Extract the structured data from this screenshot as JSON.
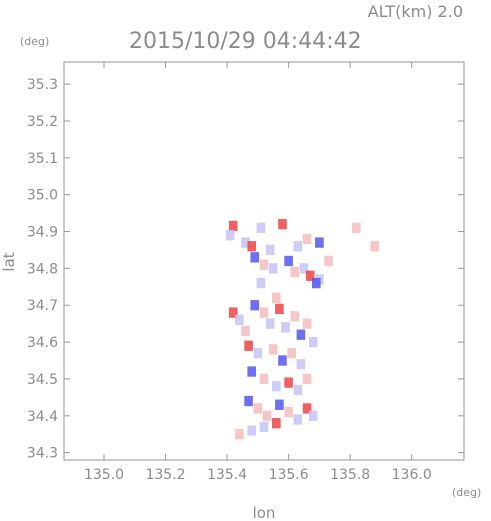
{
  "header": {
    "altitude_label": "ALT(km) 2.0",
    "timestamp": "2015/10/29 04:44:42"
  },
  "chart_data": {
    "type": "heatmap",
    "xlabel": "lon",
    "ylabel": "lat",
    "x_unit": "(deg)",
    "y_unit": "(deg)",
    "xlim": [
      134.87,
      136.17
    ],
    "ylim": [
      34.28,
      35.36
    ],
    "x_ticks": [
      135.0,
      135.2,
      135.4,
      135.6,
      135.8,
      136.0
    ],
    "x_tick_labels": [
      "135.0",
      "135.2",
      "135.4",
      "135.6",
      "135.8",
      "136.0"
    ],
    "y_ticks": [
      34.3,
      34.4,
      34.5,
      34.6,
      34.7,
      34.8,
      34.9,
      35.0,
      35.1,
      35.2,
      35.3
    ],
    "y_tick_labels": [
      "34.3",
      "34.4",
      "34.5",
      "34.6",
      "34.7",
      "34.8",
      "34.9",
      "35.0",
      "35.1",
      "35.2",
      "35.3"
    ],
    "colors": {
      "positive": "#ee4444",
      "negative": "#5555ee",
      "positive_light": "#f6bcbc",
      "negative_light": "#c4c4f6"
    },
    "cells": [
      {
        "lon": 135.42,
        "lat": 34.915,
        "v": 1
      },
      {
        "lon": 135.41,
        "lat": 34.89,
        "v": -1
      },
      {
        "lon": 135.46,
        "lat": 34.87,
        "v": -1
      },
      {
        "lon": 135.48,
        "lat": 34.86,
        "v": 1
      },
      {
        "lon": 135.51,
        "lat": 34.91,
        "v": -1
      },
      {
        "lon": 135.54,
        "lat": 34.85,
        "v": -1
      },
      {
        "lon": 135.58,
        "lat": 34.92,
        "v": 1
      },
      {
        "lon": 135.63,
        "lat": 34.86,
        "v": -1
      },
      {
        "lon": 135.66,
        "lat": 34.88,
        "v": 1
      },
      {
        "lon": 135.7,
        "lat": 34.87,
        "v": -1
      },
      {
        "lon": 135.82,
        "lat": 34.91,
        "v": 1
      },
      {
        "lon": 135.88,
        "lat": 34.86,
        "v": 1
      },
      {
        "lon": 135.49,
        "lat": 34.83,
        "v": -1
      },
      {
        "lon": 135.52,
        "lat": 34.81,
        "v": 1
      },
      {
        "lon": 135.55,
        "lat": 34.8,
        "v": -1
      },
      {
        "lon": 135.6,
        "lat": 34.82,
        "v": -1
      },
      {
        "lon": 135.62,
        "lat": 34.79,
        "v": 1
      },
      {
        "lon": 135.65,
        "lat": 34.8,
        "v": -1
      },
      {
        "lon": 135.67,
        "lat": 34.78,
        "v": 1
      },
      {
        "lon": 135.7,
        "lat": 34.77,
        "v": -1
      },
      {
        "lon": 135.73,
        "lat": 34.82,
        "v": 1
      },
      {
        "lon": 135.69,
        "lat": 34.76,
        "v": -1
      },
      {
        "lon": 135.51,
        "lat": 34.76,
        "v": -1
      },
      {
        "lon": 135.56,
        "lat": 34.72,
        "v": 1
      },
      {
        "lon": 135.42,
        "lat": 34.68,
        "v": 1
      },
      {
        "lon": 135.44,
        "lat": 34.66,
        "v": -1
      },
      {
        "lon": 135.46,
        "lat": 34.63,
        "v": 1
      },
      {
        "lon": 135.49,
        "lat": 34.7,
        "v": -1
      },
      {
        "lon": 135.52,
        "lat": 34.68,
        "v": 1
      },
      {
        "lon": 135.54,
        "lat": 34.65,
        "v": -1
      },
      {
        "lon": 135.57,
        "lat": 34.69,
        "v": 1
      },
      {
        "lon": 135.59,
        "lat": 34.64,
        "v": -1
      },
      {
        "lon": 135.62,
        "lat": 34.67,
        "v": 1
      },
      {
        "lon": 135.64,
        "lat": 34.62,
        "v": -1
      },
      {
        "lon": 135.66,
        "lat": 34.65,
        "v": 1
      },
      {
        "lon": 135.68,
        "lat": 34.6,
        "v": -1
      },
      {
        "lon": 135.47,
        "lat": 34.59,
        "v": 1
      },
      {
        "lon": 135.5,
        "lat": 34.57,
        "v": -1
      },
      {
        "lon": 135.55,
        "lat": 34.58,
        "v": 1
      },
      {
        "lon": 135.58,
        "lat": 34.55,
        "v": -1
      },
      {
        "lon": 135.61,
        "lat": 34.57,
        "v": 1
      },
      {
        "lon": 135.64,
        "lat": 34.54,
        "v": -1
      },
      {
        "lon": 135.48,
        "lat": 34.52,
        "v": -1
      },
      {
        "lon": 135.52,
        "lat": 34.5,
        "v": 1
      },
      {
        "lon": 135.56,
        "lat": 34.48,
        "v": -1
      },
      {
        "lon": 135.6,
        "lat": 34.49,
        "v": 1
      },
      {
        "lon": 135.63,
        "lat": 34.47,
        "v": -1
      },
      {
        "lon": 135.66,
        "lat": 34.5,
        "v": 1
      },
      {
        "lon": 135.47,
        "lat": 34.44,
        "v": -1
      },
      {
        "lon": 135.5,
        "lat": 34.42,
        "v": 1
      },
      {
        "lon": 135.53,
        "lat": 34.4,
        "v": 1
      },
      {
        "lon": 135.57,
        "lat": 34.43,
        "v": -1
      },
      {
        "lon": 135.6,
        "lat": 34.41,
        "v": 1
      },
      {
        "lon": 135.63,
        "lat": 34.39,
        "v": -1
      },
      {
        "lon": 135.66,
        "lat": 34.42,
        "v": 1
      },
      {
        "lon": 135.68,
        "lat": 34.4,
        "v": -1
      },
      {
        "lon": 135.52,
        "lat": 34.37,
        "v": -1
      },
      {
        "lon": 135.56,
        "lat": 34.38,
        "v": 1
      },
      {
        "lon": 135.44,
        "lat": 34.35,
        "v": 1
      },
      {
        "lon": 135.48,
        "lat": 34.36,
        "v": -1
      }
    ]
  }
}
